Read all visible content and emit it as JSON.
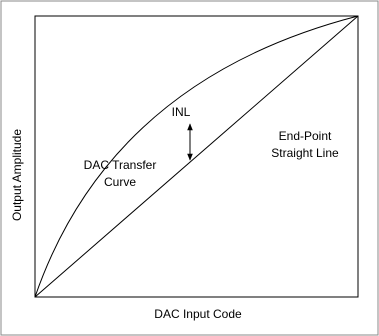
{
  "labels": {
    "inl": "INL",
    "end_point": [
      "End-Point",
      "Straight Line"
    ],
    "transfer": [
      "DAC Transfer",
      "Curve"
    ],
    "x_axis": "DAC Input Code",
    "y_axis": "Output Amplitude"
  }
}
